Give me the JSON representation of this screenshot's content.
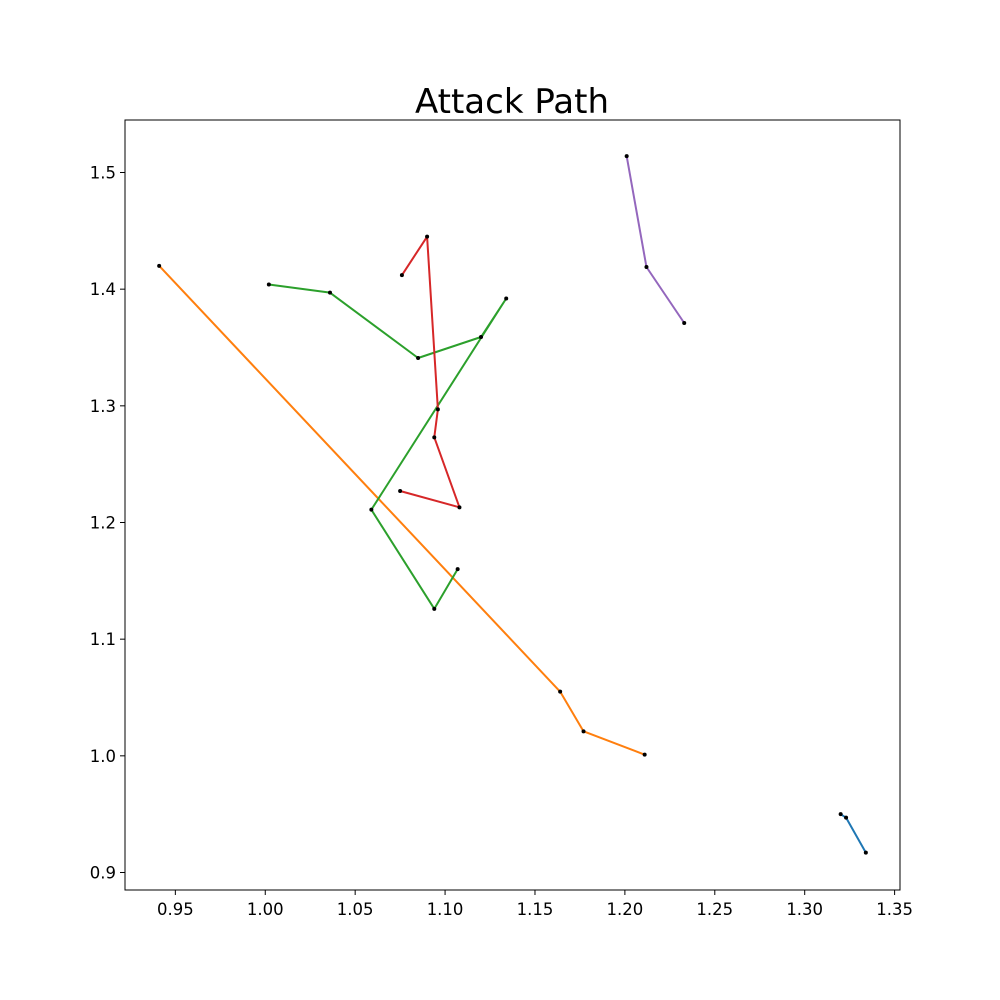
{
  "chart_data": {
    "type": "line",
    "title": "Attack Path",
    "xlabel": "",
    "ylabel": "",
    "xlim": [
      0.922,
      1.353
    ],
    "ylim": [
      0.885,
      1.545
    ],
    "xticks": [
      0.95,
      1.0,
      1.05,
      1.1,
      1.15,
      1.2,
      1.25,
      1.3,
      1.35
    ],
    "xtick_labels": [
      "0.95",
      "1.00",
      "1.05",
      "1.10",
      "1.15",
      "1.20",
      "1.25",
      "1.30",
      "1.35"
    ],
    "yticks": [
      0.9,
      1.0,
      1.1,
      1.2,
      1.3,
      1.4,
      1.5
    ],
    "ytick_labels": [
      "0.9",
      "1.0",
      "1.1",
      "1.2",
      "1.3",
      "1.4",
      "1.5"
    ],
    "grid": false,
    "marker_color": "#000000",
    "series": [
      {
        "color": "#1f77b4",
        "points": [
          [
            1.32,
            0.95
          ],
          [
            1.323,
            0.947
          ],
          [
            1.334,
            0.917
          ]
        ]
      },
      {
        "color": "#ff7f0e",
        "points": [
          [
            0.941,
            1.42
          ],
          [
            1.164,
            1.055
          ],
          [
            1.177,
            1.021
          ],
          [
            1.211,
            1.001
          ]
        ]
      },
      {
        "color": "#2ca02c",
        "points": [
          [
            1.002,
            1.404
          ],
          [
            1.036,
            1.397
          ],
          [
            1.085,
            1.341
          ],
          [
            1.12,
            1.359
          ],
          [
            1.134,
            1.392
          ],
          [
            1.059,
            1.211
          ],
          [
            1.094,
            1.126
          ],
          [
            1.107,
            1.16
          ]
        ]
      },
      {
        "color": "#d62728",
        "points": [
          [
            1.076,
            1.412
          ],
          [
            1.09,
            1.445
          ],
          [
            1.096,
            1.297
          ],
          [
            1.094,
            1.273
          ],
          [
            1.108,
            1.213
          ],
          [
            1.075,
            1.227
          ]
        ]
      },
      {
        "color": "#9467bd",
        "points": [
          [
            1.201,
            1.514
          ],
          [
            1.212,
            1.419
          ],
          [
            1.233,
            1.371
          ]
        ]
      }
    ]
  }
}
